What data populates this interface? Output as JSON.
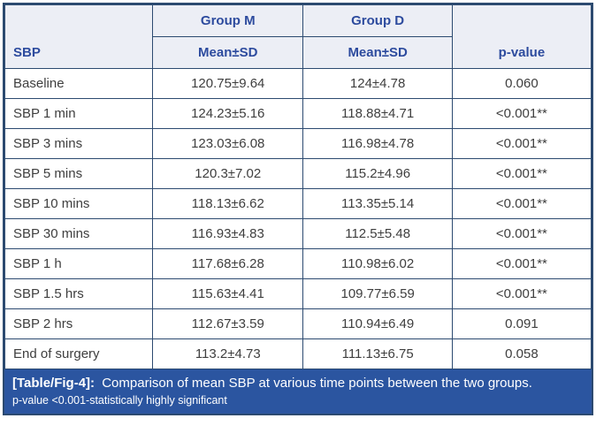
{
  "header": {
    "row_label": "SBP",
    "group_m": "Group M",
    "group_d": "Group D",
    "mean_sd_m": "Mean±SD",
    "mean_sd_d": "Mean±SD",
    "p_value": "p-value"
  },
  "rows": [
    {
      "label": "Baseline",
      "group_m": "120.75±9.64",
      "group_d": "124±4.78",
      "p": "0.060"
    },
    {
      "label": "SBP 1 min",
      "group_m": "124.23±5.16",
      "group_d": "118.88±4.71",
      "p": "<0.001**"
    },
    {
      "label": "SBP 3 mins",
      "group_m": "123.03±6.08",
      "group_d": "116.98±4.78",
      "p": "<0.001**"
    },
    {
      "label": "SBP 5 mins",
      "group_m": "120.3±7.02",
      "group_d": "115.2±4.96",
      "p": "<0.001**"
    },
    {
      "label": "SBP 10 mins",
      "group_m": "118.13±6.62",
      "group_d": "113.35±5.14",
      "p": "<0.001**"
    },
    {
      "label": "SBP 30 mins",
      "group_m": "116.93±4.83",
      "group_d": "112.5±5.48",
      "p": "<0.001**"
    },
    {
      "label": "SBP 1 h",
      "group_m": "117.68±6.28",
      "group_d": "110.98±6.02",
      "p": "<0.001**"
    },
    {
      "label": "SBP 1.5 hrs",
      "group_m": "115.63±4.41",
      "group_d": "109.77±6.59",
      "p": "<0.001**"
    },
    {
      "label": "SBP 2 hrs",
      "group_m": "112.67±3.59",
      "group_d": "110.94±6.49",
      "p": "0.091"
    },
    {
      "label": "End of surgery",
      "group_m": "113.2±4.73",
      "group_d": "111.13±6.75",
      "p": "0.058"
    }
  ],
  "caption": {
    "tag": "[Table/Fig-4]:",
    "text": "Comparison of mean SBP at various time points between the two groups.",
    "note": "p-value <0.001-statistically highly significant"
  },
  "colors": {
    "header_bg": "#eceef5",
    "header_text": "#2d4b9e",
    "border": "#2c4a70",
    "body_text": "#3e3e3e",
    "caption_bg": "#2b55a0",
    "caption_text": "#ffffff"
  }
}
